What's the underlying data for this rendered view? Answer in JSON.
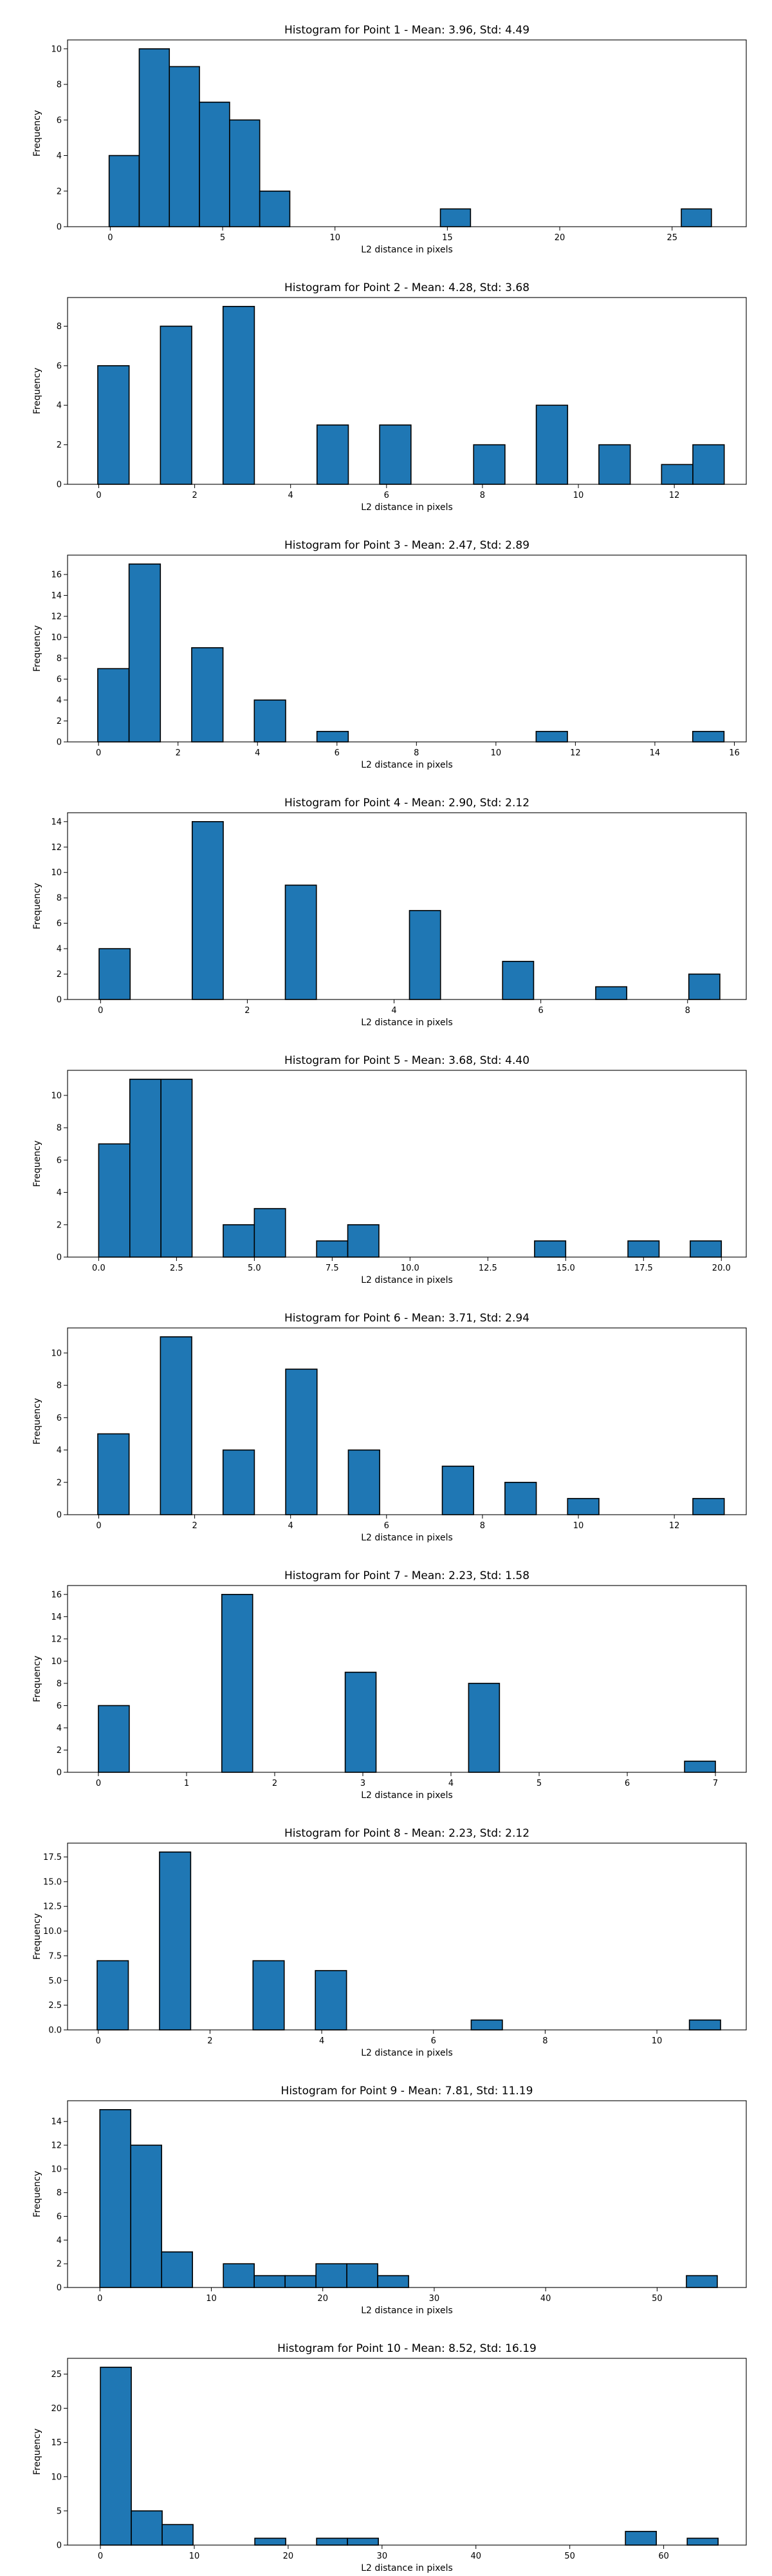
{
  "chart_data": [
    {
      "type": "bar",
      "title": "Histogram for Point 1 - Mean: 3.96, Std: 4.49",
      "xlabel": "L2 distance in pixels",
      "ylabel": "Frequency",
      "xlim": [
        -1.9,
        28.3
      ],
      "ylim": [
        0,
        10.5
      ],
      "xticks": [
        0,
        5,
        10,
        15,
        20,
        25
      ],
      "xtick_labels": [
        "0",
        "5",
        "10",
        "15",
        "20",
        "25"
      ],
      "yticks": [
        0,
        2,
        4,
        6,
        8,
        10
      ],
      "ytick_labels": [
        "0",
        "2",
        "4",
        "6",
        "8",
        "10"
      ],
      "bin_start": -0.05,
      "bin_width": 1.34,
      "bins": [
        [
          0,
          4
        ],
        [
          1,
          10
        ],
        [
          2,
          9
        ],
        [
          3,
          7
        ],
        [
          4,
          6
        ],
        [
          5,
          2
        ],
        [
          11,
          1
        ],
        [
          19,
          1
        ]
      ]
    },
    {
      "type": "bar",
      "title": "Histogram for Point 2 - Mean: 4.28, Std: 3.68",
      "xlabel": "L2 distance in pixels",
      "ylabel": "Frequency",
      "xlim": [
        -0.65,
        13.5
      ],
      "ylim": [
        0,
        9.45
      ],
      "xticks": [
        0,
        2,
        4,
        6,
        8,
        10,
        12
      ],
      "xtick_labels": [
        "0",
        "2",
        "4",
        "6",
        "8",
        "10",
        "12"
      ],
      "yticks": [
        0,
        2,
        4,
        6,
        8
      ],
      "ytick_labels": [
        "0",
        "2",
        "4",
        "6",
        "8"
      ],
      "bin_start": -0.02,
      "bin_width": 0.653,
      "bins": [
        [
          0,
          6
        ],
        [
          2,
          8
        ],
        [
          4,
          9
        ],
        [
          7,
          3
        ],
        [
          9,
          3
        ],
        [
          12,
          2
        ],
        [
          14,
          4
        ],
        [
          16,
          2
        ],
        [
          18,
          1
        ],
        [
          19,
          2
        ]
      ]
    },
    {
      "type": "bar",
      "title": "Histogram for Point 3 - Mean: 2.47, Std: 2.89",
      "xlabel": "L2 distance in pixels",
      "ylabel": "Frequency",
      "xlim": [
        -0.78,
        16.3
      ],
      "ylim": [
        0,
        17.85
      ],
      "xticks": [
        0,
        2,
        4,
        6,
        8,
        10,
        12,
        14,
        16
      ],
      "xtick_labels": [
        "0",
        "2",
        "4",
        "6",
        "8",
        "10",
        "12",
        "14",
        "16"
      ],
      "yticks": [
        0,
        2,
        4,
        6,
        8,
        10,
        12,
        14,
        16
      ],
      "ytick_labels": [
        "0",
        "2",
        "4",
        "6",
        "8",
        "10",
        "12",
        "14",
        "16"
      ],
      "bin_start": -0.02,
      "bin_width": 0.788,
      "bins": [
        [
          0,
          7
        ],
        [
          1,
          17
        ],
        [
          3,
          9
        ],
        [
          5,
          4
        ],
        [
          7,
          1
        ],
        [
          14,
          1
        ],
        [
          19,
          1
        ]
      ]
    },
    {
      "type": "bar",
      "title": "Histogram for Point 4 - Mean: 2.90, Std: 2.12",
      "xlabel": "L2 distance in pixels",
      "ylabel": "Frequency",
      "xlim": [
        -0.45,
        8.8
      ],
      "ylim": [
        0,
        14.7
      ],
      "xticks": [
        0,
        2,
        4,
        6,
        8
      ],
      "xtick_labels": [
        "0",
        "2",
        "4",
        "6",
        "8"
      ],
      "yticks": [
        0,
        2,
        4,
        6,
        8,
        10,
        12,
        14
      ],
      "ytick_labels": [
        "0",
        "2",
        "4",
        "6",
        "8",
        "10",
        "12",
        "14"
      ],
      "bin_start": -0.02,
      "bin_width": 0.423,
      "bins": [
        [
          0,
          4
        ],
        [
          3,
          14
        ],
        [
          6,
          9
        ],
        [
          10,
          7
        ],
        [
          13,
          3
        ],
        [
          16,
          1
        ],
        [
          19,
          2
        ]
      ]
    },
    {
      "type": "bar",
      "title": "Histogram for Point 5 - Mean: 3.68, Std: 4.40",
      "xlabel": "L2 distance in pixels",
      "ylabel": "Frequency",
      "xlim": [
        -1.0,
        20.8
      ],
      "ylim": [
        0,
        11.55
      ],
      "xticks": [
        0,
        2.5,
        5,
        7.5,
        10,
        12.5,
        15,
        17.5,
        20
      ],
      "xtick_labels": [
        "0.0",
        "2.5",
        "5.0",
        "7.5",
        "10.0",
        "12.5",
        "15.0",
        "17.5",
        "20.0"
      ],
      "yticks": [
        0,
        2,
        4,
        6,
        8,
        10
      ],
      "ytick_labels": [
        "0",
        "2",
        "4",
        "6",
        "8",
        "10"
      ],
      "bin_start": 0.0,
      "bin_width": 1.0,
      "bins": [
        [
          0,
          7
        ],
        [
          1,
          11
        ],
        [
          2,
          11
        ],
        [
          4,
          2
        ],
        [
          5,
          3
        ],
        [
          7,
          1
        ],
        [
          8,
          2
        ],
        [
          14,
          1
        ],
        [
          17,
          1
        ],
        [
          19,
          1
        ]
      ]
    },
    {
      "type": "bar",
      "title": "Histogram for Point 6 - Mean: 3.71, Std: 2.94",
      "xlabel": "L2 distance in pixels",
      "ylabel": "Frequency",
      "xlim": [
        -0.65,
        13.5
      ],
      "ylim": [
        0,
        11.55
      ],
      "xticks": [
        0,
        2,
        4,
        6,
        8,
        10,
        12
      ],
      "xtick_labels": [
        "0",
        "2",
        "4",
        "6",
        "8",
        "10",
        "12"
      ],
      "yticks": [
        0,
        2,
        4,
        6,
        8,
        10
      ],
      "ytick_labels": [
        "0",
        "2",
        "4",
        "6",
        "8",
        "10"
      ],
      "bin_start": -0.02,
      "bin_width": 0.653,
      "bins": [
        [
          0,
          5
        ],
        [
          2,
          11
        ],
        [
          4,
          4
        ],
        [
          6,
          9
        ],
        [
          8,
          4
        ],
        [
          11,
          3
        ],
        [
          13,
          2
        ],
        [
          15,
          1
        ],
        [
          19,
          1
        ]
      ]
    },
    {
      "type": "bar",
      "title": "Histogram for Point 7 - Mean: 2.23, Std: 1.58",
      "xlabel": "L2 distance in pixels",
      "ylabel": "Frequency",
      "xlim": [
        -0.35,
        7.35
      ],
      "ylim": [
        0,
        16.8
      ],
      "xticks": [
        0,
        1,
        2,
        3,
        4,
        5,
        6,
        7
      ],
      "xtick_labels": [
        "0",
        "1",
        "2",
        "3",
        "4",
        "5",
        "6",
        "7"
      ],
      "yticks": [
        0,
        2,
        4,
        6,
        8,
        10,
        12,
        14,
        16
      ],
      "ytick_labels": [
        "0",
        "2",
        "4",
        "6",
        "8",
        "10",
        "12",
        "14",
        "16"
      ],
      "bin_start": 0.0,
      "bin_width": 0.35,
      "bins": [
        [
          0,
          6
        ],
        [
          4,
          16
        ],
        [
          8,
          9
        ],
        [
          12,
          8
        ],
        [
          19,
          1
        ]
      ]
    },
    {
      "type": "bar",
      "title": "Histogram for Point 8 - Mean: 2.23, Std: 2.12",
      "xlabel": "L2 distance in pixels",
      "ylabel": "Frequency",
      "xlim": [
        -0.55,
        11.6
      ],
      "ylim": [
        0,
        18.9
      ],
      "xticks": [
        0,
        2,
        4,
        6,
        8,
        10
      ],
      "xtick_labels": [
        "0",
        "2",
        "4",
        "6",
        "8",
        "10"
      ],
      "yticks": [
        0,
        2.5,
        5,
        7.5,
        10,
        12.5,
        15,
        17.5
      ],
      "ytick_labels": [
        "0.0",
        "2.5",
        "5.0",
        "7.5",
        "10.0",
        "12.5",
        "15.0",
        "17.5"
      ],
      "bin_start": -0.02,
      "bin_width": 0.558,
      "bins": [
        [
          0,
          7
        ],
        [
          2,
          18
        ],
        [
          5,
          7
        ],
        [
          7,
          6
        ],
        [
          12,
          1
        ],
        [
          19,
          1
        ]
      ]
    },
    {
      "type": "bar",
      "title": "Histogram for Point 9 - Mean: 7.81, Std: 11.19",
      "xlabel": "L2 distance in pixels",
      "ylabel": "Frequency",
      "xlim": [
        -2.9,
        58.0
      ],
      "ylim": [
        0,
        15.75
      ],
      "xticks": [
        0,
        10,
        20,
        30,
        40,
        50
      ],
      "xtick_labels": [
        "0",
        "10",
        "20",
        "30",
        "40",
        "50"
      ],
      "yticks": [
        0,
        2,
        4,
        6,
        8,
        10,
        12,
        14
      ],
      "ytick_labels": [
        "0",
        "2",
        "4",
        "6",
        "8",
        "10",
        "12",
        "14"
      ],
      "bin_start": 0.0,
      "bin_width": 2.77,
      "bins": [
        [
          0,
          15
        ],
        [
          1,
          12
        ],
        [
          2,
          3
        ],
        [
          4,
          2
        ],
        [
          5,
          1
        ],
        [
          6,
          1
        ],
        [
          7,
          2
        ],
        [
          8,
          2
        ],
        [
          9,
          1
        ],
        [
          19,
          1
        ]
      ]
    },
    {
      "type": "bar",
      "title": "Histogram for Point 10 - Mean: 8.52, Std: 16.19",
      "xlabel": "L2 distance in pixels",
      "ylabel": "Frequency",
      "xlim": [
        -3.5,
        68.8
      ],
      "ylim": [
        0,
        27.3
      ],
      "xticks": [
        0,
        10,
        20,
        30,
        40,
        50,
        60
      ],
      "xtick_labels": [
        "0",
        "10",
        "20",
        "30",
        "40",
        "50",
        "60"
      ],
      "yticks": [
        0,
        5,
        10,
        15,
        20,
        25
      ],
      "ytick_labels": [
        "0",
        "5",
        "10",
        "15",
        "20",
        "25"
      ],
      "bin_start": 0.0,
      "bin_width": 3.29,
      "bins": [
        [
          0,
          26
        ],
        [
          1,
          5
        ],
        [
          2,
          3
        ],
        [
          5,
          1
        ],
        [
          7,
          1
        ],
        [
          8,
          1
        ],
        [
          17,
          2
        ],
        [
          19,
          1
        ]
      ]
    }
  ]
}
